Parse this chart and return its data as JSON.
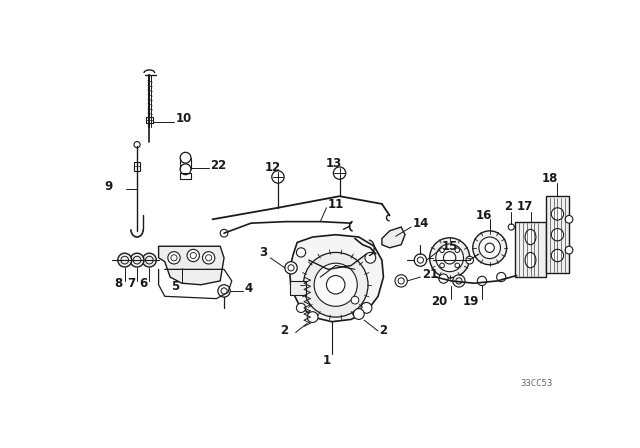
{
  "bg_color": "#ffffff",
  "diagram_color": "#1a1a1a",
  "watermark": "33CC53",
  "figsize": [
    6.4,
    4.48
  ],
  "dpi": 100
}
